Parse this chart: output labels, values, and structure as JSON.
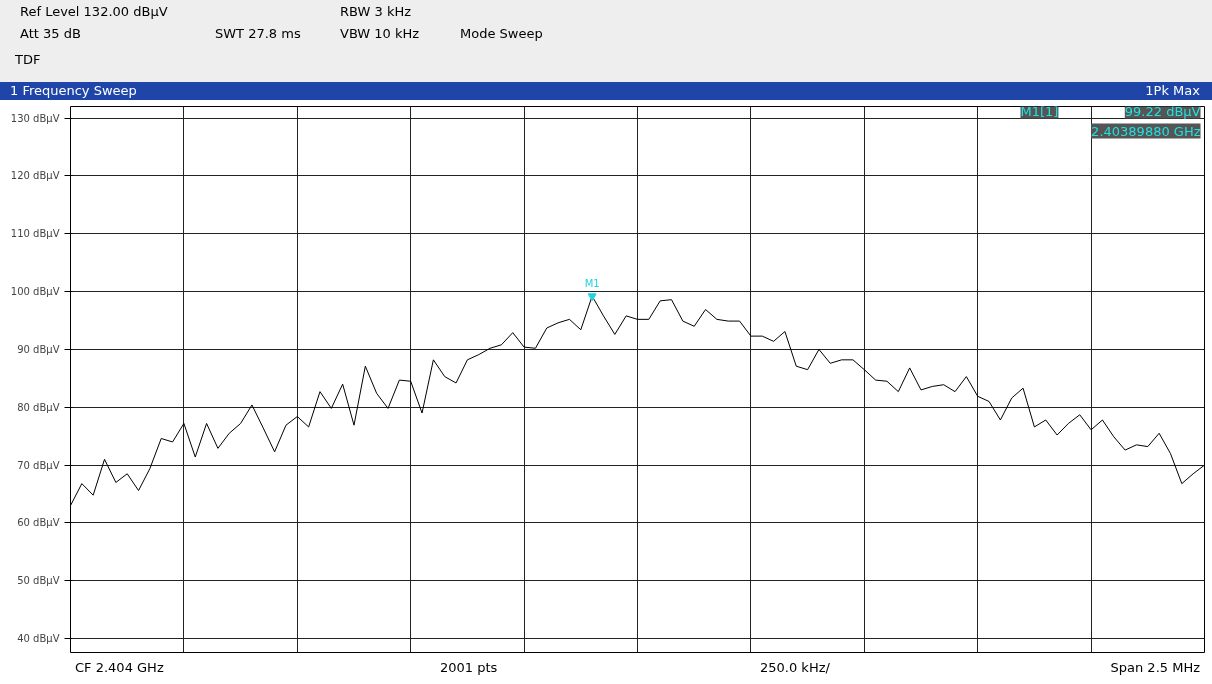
{
  "chart_data": {
    "type": "line",
    "title": "1 Frequency Sweep",
    "annotations": [
      "Ref Level 132.00 dBµV",
      "Att 35 dB",
      "SWT 27.8 ms",
      "RBW 3 kHz",
      "VBW 10 kHz",
      "Mode Sweep",
      "TDF",
      "1Pk Max",
      "M1[1]",
      "99.22 dBµV",
      "2.40389880 GHz",
      "CF 2.404 GHz",
      "2001 pts",
      "250.0 kHz/",
      "Span 2.5 MHz",
      "M1"
    ],
    "categories": [
      null,
      null,
      null,
      null,
      null,
      null,
      null,
      null,
      null,
      null,
      null,
      null,
      null,
      null,
      null,
      null,
      null,
      null,
      null,
      null,
      null,
      null,
      null,
      null,
      null,
      null,
      null,
      null,
      null,
      null,
      null,
      null,
      null,
      null,
      null,
      null,
      null,
      null,
      null,
      null,
      null,
      null,
      null,
      null,
      null,
      null,
      null,
      null,
      null,
      null,
      null,
      null,
      null,
      null,
      null,
      null,
      null,
      null,
      null,
      null,
      null,
      null,
      null,
      null,
      null,
      null,
      null,
      null,
      null,
      null,
      null,
      null,
      null,
      null,
      null,
      null,
      null,
      null,
      null,
      null,
      null,
      null,
      null,
      null,
      null,
      null,
      null,
      null,
      null,
      null,
      null,
      null,
      null,
      null,
      null,
      null,
      null,
      null,
      null,
      null,
      null
    ],
    "series": [
      {
        "color": "#000000",
        "values": [
          63,
          66.8,
          64.8,
          71,
          67,
          68.5,
          65.6,
          69.4,
          74.6,
          74,
          77.2,
          71.4,
          77.2,
          72.9,
          75.5,
          77.2,
          80.4,
          76.4,
          72.3,
          76.9,
          78.4,
          76.6,
          82.7,
          79.8,
          84,
          76.9,
          87.1,
          82.4,
          79.8,
          84.7,
          84.5,
          79,
          88.2,
          85.3,
          84.2,
          88.2,
          89.1,
          90.2,
          90.8,
          92.9,
          90.4,
          90.2,
          93.7,
          94.6,
          95.2,
          93.4,
          99.22,
          95.8,
          92.6,
          95.8,
          95.2,
          95.2,
          98.4,
          98.6,
          94.9,
          94,
          96.9,
          95.2,
          94.9,
          94.9,
          92.3,
          92.3,
          91.4,
          93.1,
          87.1,
          86.5,
          90,
          87.6,
          88.2,
          88.2,
          86.5,
          84.7,
          84.5,
          82.7,
          86.8,
          83,
          83.6,
          83.9,
          82.7,
          85.3,
          81.9,
          81,
          77.8,
          81.6,
          83.3,
          76.6,
          77.8,
          75.2,
          77.2,
          78.7,
          76.1,
          77.8,
          74.9,
          72.6,
          73.5,
          73.2,
          75.5,
          72,
          66.8,
          68.5,
          70
        ]
      },
      {
        "type": "scatter",
        "marker": "triangle",
        "color": "#22d3e0",
        "values": [
          null,
          null,
          null,
          null,
          null,
          null,
          null,
          null,
          null,
          null,
          null,
          null,
          null,
          null,
          null,
          null,
          null,
          null,
          null,
          null,
          null,
          null,
          null,
          null,
          null,
          null,
          null,
          null,
          null,
          null,
          null,
          null,
          null,
          null,
          null,
          null,
          null,
          null,
          null,
          null,
          null,
          null,
          null,
          null,
          null,
          null,
          99.22,
          null,
          null,
          null,
          null,
          null,
          null,
          null,
          null,
          null,
          null,
          null,
          null,
          null,
          null,
          null,
          null,
          null,
          null,
          null,
          null,
          null,
          null,
          null,
          null,
          null,
          null,
          null,
          null,
          null,
          null,
          null,
          null,
          null,
          null,
          null,
          null,
          null,
          null,
          null,
          null,
          null,
          null,
          null,
          null,
          null,
          null,
          null,
          null,
          null,
          null,
          null,
          null,
          null,
          null
        ]
      }
    ],
    "ylim": [
      37.6,
      132
    ],
    "yticks": [
      {
        "value": 40,
        "label": "40 dBµV"
      },
      {
        "value": 50,
        "label": "50 dBµV"
      },
      {
        "value": 60,
        "label": "60 dBµV"
      },
      {
        "value": 70,
        "label": "70 dBµV"
      },
      {
        "value": 80,
        "label": "80 dBµV"
      },
      {
        "value": 90,
        "label": "90 dBµV"
      },
      {
        "value": 100,
        "label": "100 dBµV"
      },
      {
        "value": 110,
        "label": "110 dBµV"
      },
      {
        "value": 120,
        "label": "120 dBµV"
      },
      {
        "value": 130,
        "label": "130 dBµV"
      }
    ],
    "grid": true,
    "tick_labels": "y",
    "marker": "none",
    "line_style": "solid"
  }
}
